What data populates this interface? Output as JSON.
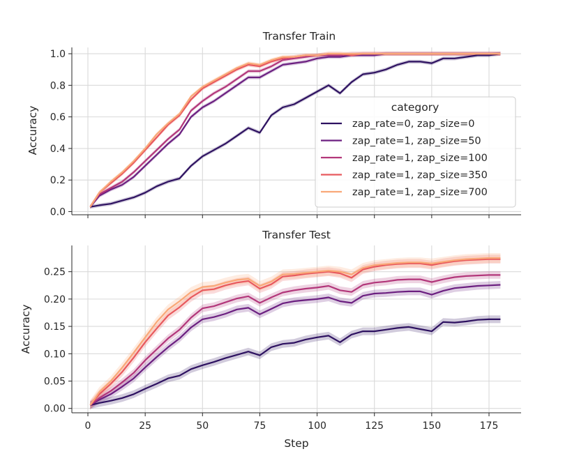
{
  "chart_data": [
    {
      "type": "line",
      "title": "Transfer Train",
      "xlabel": "",
      "ylabel": "Accuracy",
      "xlim": [
        -7,
        189
      ],
      "ylim": [
        -0.02,
        1.04
      ],
      "xticks": [
        0,
        25,
        50,
        75,
        100,
        125,
        150,
        175
      ],
      "yticks": [
        0.0,
        0.2,
        0.4,
        0.6,
        0.8,
        1.0
      ],
      "ytick_labels": [
        "0.0",
        "0.2",
        "0.4",
        "0.6",
        "0.8",
        "1.0"
      ],
      "x": [
        1,
        5,
        10,
        15,
        20,
        25,
        30,
        35,
        40,
        45,
        50,
        55,
        60,
        65,
        70,
        75,
        80,
        85,
        90,
        95,
        100,
        105,
        110,
        115,
        120,
        125,
        130,
        135,
        140,
        145,
        150,
        155,
        160,
        165,
        170,
        175,
        180
      ],
      "series": [
        {
          "name": "zap_rate=0, zap_size=0",
          "color": "#2d1160",
          "band": 0.012,
          "values": [
            0.03,
            0.04,
            0.05,
            0.07,
            0.09,
            0.12,
            0.16,
            0.19,
            0.21,
            0.29,
            0.35,
            0.39,
            0.43,
            0.48,
            0.53,
            0.5,
            0.61,
            0.66,
            0.68,
            0.72,
            0.76,
            0.8,
            0.75,
            0.82,
            0.87,
            0.88,
            0.9,
            0.93,
            0.95,
            0.95,
            0.94,
            0.97,
            0.97,
            0.98,
            0.99,
            0.99,
            1.0
          ]
        },
        {
          "name": "zap_rate=1, zap_size=50",
          "color": "#6b1f80",
          "band": 0.012,
          "values": [
            0.03,
            0.1,
            0.14,
            0.17,
            0.22,
            0.29,
            0.36,
            0.43,
            0.49,
            0.6,
            0.66,
            0.7,
            0.75,
            0.8,
            0.85,
            0.85,
            0.89,
            0.93,
            0.94,
            0.95,
            0.97,
            0.98,
            0.98,
            0.99,
            0.99,
            0.99,
            1.0,
            1.0,
            1.0,
            1.0,
            1.0,
            1.0,
            1.0,
            1.0,
            1.0,
            1.0,
            1.0
          ]
        },
        {
          "name": "zap_rate=1, zap_size=100",
          "color": "#b2367a",
          "band": 0.012,
          "values": [
            0.03,
            0.11,
            0.15,
            0.19,
            0.25,
            0.32,
            0.39,
            0.46,
            0.52,
            0.64,
            0.7,
            0.75,
            0.79,
            0.84,
            0.89,
            0.89,
            0.92,
            0.96,
            0.97,
            0.98,
            0.99,
            0.99,
            0.99,
            1.0,
            1.0,
            1.0,
            1.0,
            1.0,
            1.0,
            1.0,
            1.0,
            1.0,
            1.0,
            1.0,
            1.0,
            1.0,
            1.0
          ]
        },
        {
          "name": "zap_rate=1, zap_size=350",
          "color": "#e8595d",
          "band": 0.012,
          "values": [
            0.03,
            0.12,
            0.18,
            0.24,
            0.31,
            0.39,
            0.47,
            0.55,
            0.61,
            0.71,
            0.78,
            0.82,
            0.86,
            0.9,
            0.93,
            0.92,
            0.95,
            0.97,
            0.98,
            0.99,
            0.99,
            1.0,
            1.0,
            0.99,
            1.0,
            1.0,
            1.0,
            1.0,
            1.0,
            1.0,
            1.0,
            1.0,
            1.0,
            1.0,
            1.0,
            1.0,
            1.0
          ]
        },
        {
          "name": "zap_rate=1, zap_size=700",
          "color": "#f9a878",
          "band": 0.012,
          "values": [
            0.03,
            0.12,
            0.19,
            0.25,
            0.32,
            0.4,
            0.49,
            0.56,
            0.62,
            0.73,
            0.79,
            0.83,
            0.87,
            0.91,
            0.94,
            0.93,
            0.96,
            0.98,
            0.98,
            0.99,
            0.99,
            1.0,
            1.0,
            1.0,
            1.0,
            1.0,
            1.0,
            1.0,
            1.0,
            1.0,
            1.0,
            1.0,
            1.0,
            1.0,
            1.0,
            1.0,
            1.0
          ]
        }
      ],
      "legend": {
        "title": "category",
        "placement": "center-right"
      },
      "grid": true
    },
    {
      "type": "line",
      "title": "Transfer Test",
      "xlabel": "Step",
      "ylabel": "Accuracy",
      "xlim": [
        -7,
        189
      ],
      "ylim": [
        -0.008,
        0.298
      ],
      "xticks": [
        0,
        25,
        50,
        75,
        100,
        125,
        150,
        175
      ],
      "yticks": [
        0.0,
        0.05,
        0.1,
        0.15,
        0.2,
        0.25
      ],
      "ytick_labels": [
        "0.00",
        "0.05",
        "0.10",
        "0.15",
        "0.20",
        "0.25"
      ],
      "x": [
        1,
        5,
        10,
        15,
        20,
        25,
        30,
        35,
        40,
        45,
        50,
        55,
        60,
        65,
        70,
        75,
        80,
        85,
        90,
        95,
        100,
        105,
        110,
        115,
        120,
        125,
        130,
        135,
        140,
        145,
        150,
        155,
        160,
        165,
        170,
        175,
        180
      ],
      "series": [
        {
          "name": "zap_rate=0, zap_size=0",
          "color": "#2d1160",
          "band": 0.007,
          "values": [
            0.006,
            0.01,
            0.014,
            0.019,
            0.026,
            0.036,
            0.045,
            0.055,
            0.06,
            0.072,
            0.079,
            0.085,
            0.092,
            0.098,
            0.104,
            0.097,
            0.112,
            0.118,
            0.12,
            0.126,
            0.13,
            0.133,
            0.121,
            0.135,
            0.141,
            0.141,
            0.144,
            0.147,
            0.149,
            0.145,
            0.141,
            0.158,
            0.157,
            0.159,
            0.162,
            0.163,
            0.163
          ]
        },
        {
          "name": "zap_rate=1, zap_size=50",
          "color": "#6b1f80",
          "band": 0.007,
          "values": [
            0.006,
            0.016,
            0.026,
            0.04,
            0.055,
            0.075,
            0.094,
            0.112,
            0.128,
            0.148,
            0.163,
            0.167,
            0.173,
            0.181,
            0.184,
            0.172,
            0.182,
            0.192,
            0.196,
            0.198,
            0.2,
            0.203,
            0.196,
            0.193,
            0.206,
            0.21,
            0.211,
            0.213,
            0.214,
            0.214,
            0.208,
            0.215,
            0.22,
            0.222,
            0.224,
            0.225,
            0.226
          ]
        },
        {
          "name": "zap_rate=1, zap_size=100",
          "color": "#b2367a",
          "band": 0.007,
          "values": [
            0.006,
            0.019,
            0.032,
            0.048,
            0.065,
            0.088,
            0.108,
            0.128,
            0.144,
            0.166,
            0.183,
            0.187,
            0.194,
            0.201,
            0.205,
            0.193,
            0.203,
            0.212,
            0.216,
            0.219,
            0.221,
            0.224,
            0.216,
            0.213,
            0.226,
            0.23,
            0.232,
            0.235,
            0.236,
            0.236,
            0.231,
            0.236,
            0.24,
            0.242,
            0.243,
            0.244,
            0.244
          ]
        },
        {
          "name": "zap_rate=1, zap_size=350",
          "color": "#e8595d",
          "band": 0.008,
          "values": [
            0.006,
            0.026,
            0.045,
            0.067,
            0.093,
            0.121,
            0.146,
            0.17,
            0.185,
            0.203,
            0.216,
            0.218,
            0.225,
            0.23,
            0.233,
            0.219,
            0.227,
            0.241,
            0.243,
            0.246,
            0.248,
            0.25,
            0.247,
            0.239,
            0.254,
            0.259,
            0.262,
            0.264,
            0.265,
            0.265,
            0.262,
            0.266,
            0.269,
            0.271,
            0.272,
            0.273,
            0.273
          ]
        },
        {
          "name": "zap_rate=1, zap_size=700",
          "color": "#f9a878",
          "band": 0.009,
          "values": [
            0.006,
            0.03,
            0.05,
            0.075,
            0.102,
            0.13,
            0.158,
            0.181,
            0.196,
            0.213,
            0.222,
            0.224,
            0.23,
            0.235,
            0.237,
            0.224,
            0.232,
            0.245,
            0.246,
            0.248,
            0.25,
            0.252,
            0.25,
            0.245,
            0.257,
            0.262,
            0.264,
            0.266,
            0.267,
            0.267,
            0.265,
            0.268,
            0.271,
            0.273,
            0.274,
            0.275,
            0.275
          ]
        }
      ],
      "grid": true
    }
  ]
}
